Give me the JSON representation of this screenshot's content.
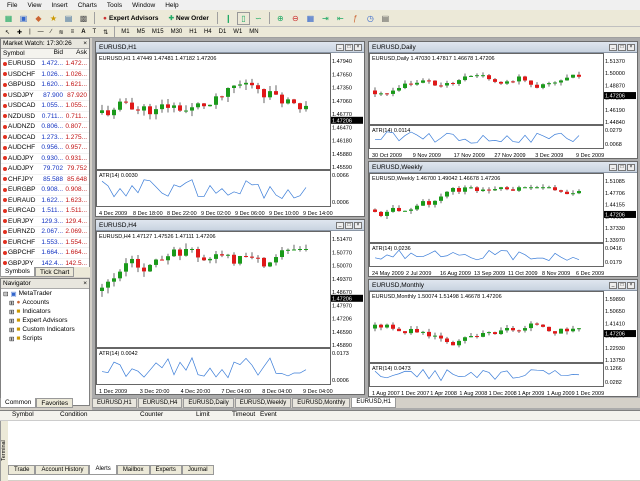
{
  "menu": [
    "File",
    "View",
    "Insert",
    "Charts",
    "Tools",
    "Window",
    "Help"
  ],
  "toolbar": {
    "expert_advisors": "Expert Advisors",
    "new_order": "New Order"
  },
  "timeframes": [
    "M1",
    "M5",
    "M15",
    "M30",
    "H1",
    "H4",
    "D1",
    "W1",
    "MN"
  ],
  "market_watch": {
    "title": "Market Watch: 17:30:26",
    "headers": [
      "Symbol",
      "Bid",
      "Ask"
    ],
    "rows": [
      [
        "EURUSD",
        "1.472...",
        "1.472..."
      ],
      [
        "USDCHF",
        "1.026...",
        "1.026..."
      ],
      [
        "GBPUSD",
        "1.620...",
        "1.621..."
      ],
      [
        "USDJPY",
        "87.900",
        "87.920"
      ],
      [
        "USDCAD",
        "1.055...",
        "1.055..."
      ],
      [
        "NZDUSD",
        "0.711...",
        "0.711..."
      ],
      [
        "AUDNZD",
        "0.806...",
        "0.807..."
      ],
      [
        "AUDCAD",
        "1.273...",
        "1.275..."
      ],
      [
        "AUDCHF",
        "0.956...",
        "0.957..."
      ],
      [
        "AUDJPY",
        "0.930...",
        "0.931..."
      ],
      [
        "AUDJPY",
        "79.702",
        "79.752"
      ],
      [
        "CHFJPY",
        "85.588",
        "85.648"
      ],
      [
        "EURGBP",
        "0.908...",
        "0.908..."
      ],
      [
        "EURAUD",
        "1.622...",
        "1.623..."
      ],
      [
        "EURCAD",
        "1.511...",
        "1.511..."
      ],
      [
        "EURJPY",
        "129.3...",
        "129.4..."
      ],
      [
        "EURNZD",
        "2.067...",
        "2.069..."
      ],
      [
        "EURCHF",
        "1.553...",
        "1.554..."
      ],
      [
        "GBPCHF",
        "1.664...",
        "1.664..."
      ],
      [
        "GBPJPY",
        "142.4...",
        "142.5..."
      ],
      [
        "CADCHF",
        "0.972...",
        "0.973..."
      ]
    ],
    "tabs": [
      "Symbols",
      "Tick Chart"
    ]
  },
  "navigator": {
    "title": "Navigator",
    "items": [
      "MetaTrader",
      "Accounts",
      "Indicators",
      "Expert Advisors",
      "Custom Indicators",
      "Scripts"
    ],
    "tabs": [
      "Common",
      "Favorites"
    ]
  },
  "charts": [
    {
      "title": "EURUSD,H1",
      "info": "EURUSD,H1  1.47449 1.47481 1.47182 1.47206",
      "atr": "ATR(14) 0.0030",
      "price": "1.47206",
      "yticks": [
        "1.47940",
        "1.47650",
        "1.47350",
        "1.47060",
        "1.46770",
        "1.46470",
        "1.46180",
        "1.45880",
        "1.45590"
      ],
      "atr_ticks": [
        "0.0066",
        "0.0006"
      ],
      "xticks": [
        "4 Dec 2009",
        "8 Dec 18:00",
        "8 Dec 22:00",
        "9 Dec 02:00",
        "9 Dec 06:00",
        "9 Dec 10:00",
        "9 Dec 14:00"
      ]
    },
    {
      "title": "EURUSD,Daily",
      "info": "EURUSD,Daily  1.47030 1.47817 1.46678 1.47206",
      "atr": "ATR(14) 0.0114",
      "price": "1.47206",
      "yticks": [
        "1.51370",
        "1.50000",
        "1.48870",
        "1.47206",
        "1.46190",
        "1.44840"
      ],
      "atr_ticks": [
        "0.0279",
        "0.0068"
      ],
      "xticks": [
        "30 Oct 2009",
        "9 Nov 2009",
        "17 Nov 2009",
        "27 Nov 2009",
        "3 Dec 2009",
        "9 Dec 2009"
      ]
    },
    {
      "title": "EURUSD,H4",
      "info": "EURUSD,H4  1.47127 1.47526 1.47111 1.47206",
      "atr": "ATR(14) 0.0042",
      "price": "1.47206",
      "yticks": [
        "1.51470",
        "1.50770",
        "1.50070",
        "1.49370",
        "1.48670",
        "1.47970",
        "1.47206",
        "1.46590",
        "1.45890"
      ],
      "atr_ticks": [
        "0.0173",
        "0.0006"
      ],
      "xticks": [
        "1 Dec 2009",
        "3 Dec 20:00",
        "4 Dec 20:00",
        "7 Dec 04:00",
        "8 Dec 04:00",
        "9 Dec 04:00"
      ]
    },
    {
      "title": "EURUSD,Weekly",
      "info": "EURUSD,Weekly  1.46700 1.49042 1.46678 1.47206",
      "atr": "ATR(14) 0.0236",
      "price": "1.47206",
      "yticks": [
        "1.51085",
        "1.47706",
        "1.44155",
        "1.40690",
        "1.37330",
        "1.33970"
      ],
      "atr_ticks": [
        "0.0416",
        "0.0179"
      ],
      "xticks": [
        "24 May 2009",
        "2 Jul 2009",
        "16 Aug 2009",
        "13 Sep 2009",
        "11 Oct 2009",
        "8 Nov 2009",
        "6 Dec 2009"
      ]
    },
    {
      "title": "EURUSD,Monthly",
      "info": "EURUSD,Monthly  1.50074 1.51498 1.46678 1.47206",
      "atr": "ATR(14) 0.0473",
      "price": "1.47206",
      "yticks": [
        "1.59890",
        "1.50650",
        "1.41410",
        "1.32170",
        "1.22930",
        "1.13750"
      ],
      "atr_ticks": [
        "0.1266",
        "0.0282"
      ],
      "xticks": [
        "1 Aug 2007",
        "1 Dec 2007",
        "1 Apr 2008",
        "1 Aug 2008",
        "1 Dec 2008",
        "1 Apr 2009",
        "1 Aug 2009",
        "1 Dec 2009"
      ]
    }
  ],
  "chart_tabs": [
    "EURUSD,H1",
    "EURUSD,H4",
    "EURUSD,Daily",
    "EURUSD,Weekly",
    "EURUSD,Monthly",
    "EURUSD,H1"
  ],
  "terminal": {
    "headers": [
      "Symbol",
      "Condition",
      "Counter",
      "Limit",
      "Timeout",
      "Event"
    ],
    "tabs": [
      "Trade",
      "Account History",
      "Alerts",
      "Mailbox",
      "Experts",
      "Journal"
    ],
    "side": "Terminal"
  }
}
